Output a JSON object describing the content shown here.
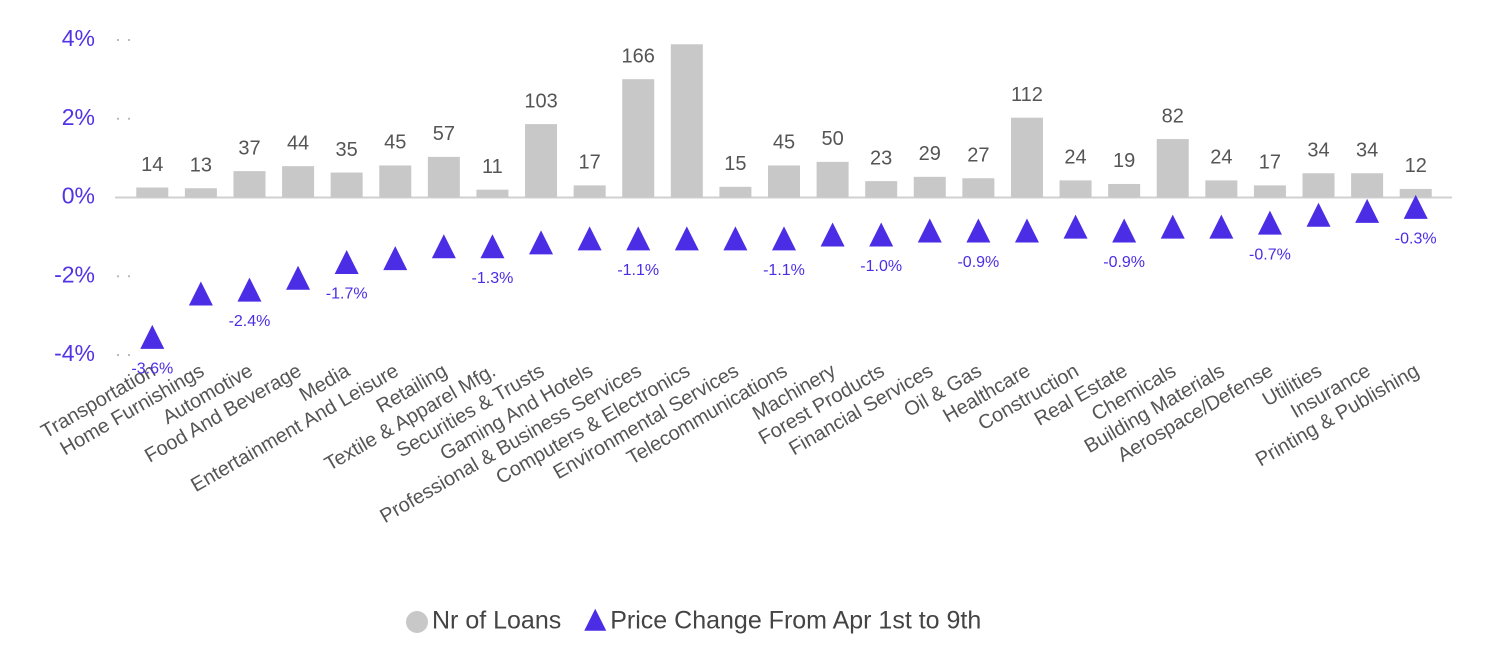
{
  "chart_data": {
    "type": "bar",
    "categories": [
      "Transportation",
      "Home Furnishings",
      "Automotive",
      "Food And Beverage",
      "Media",
      "Entertainment And Leisure",
      "Retailing",
      "Textile & Apparel Mfg.",
      "Securities & Trusts",
      "Gaming And Hotels",
      "Professional & Business Services",
      "Computers & Electronics",
      "Environmental Services",
      "Telecommunications",
      "Machinery",
      "Forest Products",
      "Financial Services",
      "Oil & Gas",
      "Healthcare",
      "Construction",
      "Real Estate",
      "Chemicals",
      "Building Materials",
      "Aerospace/Defense",
      "Utilities",
      "Insurance",
      "Printing & Publishing"
    ],
    "series": [
      {
        "name": "Nr of Loans",
        "type": "bar",
        "axis": "y2",
        "color": "#c8c8c8",
        "values": [
          14,
          13,
          37,
          44,
          35,
          45,
          57,
          11,
          103,
          17,
          166,
          215,
          15,
          45,
          50,
          23,
          29,
          27,
          112,
          24,
          19,
          82,
          24,
          17,
          34,
          34,
          12
        ],
        "value_labels": [
          "14",
          "13",
          "37",
          "44",
          "35",
          "45",
          "57",
          "11",
          "103",
          "17",
          "166",
          null,
          "15",
          "45",
          "50",
          "23",
          "29",
          "27",
          "112",
          "24",
          "19",
          "82",
          "24",
          "17",
          "34",
          "34",
          "12"
        ]
      },
      {
        "name": "Price Change From Apr 1st to 9th",
        "type": "scatter",
        "marker": "triangle",
        "color": "#4b2de6",
        "values": [
          -3.6,
          -2.5,
          -2.4,
          -2.1,
          -1.7,
          -1.6,
          -1.3,
          -1.3,
          -1.2,
          -1.1,
          -1.1,
          -1.1,
          -1.1,
          -1.1,
          -1.0,
          -1.0,
          -0.9,
          -0.9,
          -0.9,
          -0.8,
          -0.9,
          -0.8,
          -0.8,
          -0.7,
          -0.5,
          -0.4,
          -0.3
        ],
        "value_labels": [
          "-3.6%",
          null,
          "-2.4%",
          null,
          "-1.7%",
          null,
          null,
          "-1.3%",
          null,
          null,
          "-1.1%",
          null,
          null,
          "-1.1%",
          null,
          "-1.0%",
          null,
          "-0.9%",
          null,
          null,
          "-0.9%",
          null,
          null,
          "-0.7%",
          null,
          null,
          "-0.3%"
        ]
      }
    ],
    "ylim": [
      -4,
      4
    ],
    "yticks": [
      {
        "value": -4,
        "label": "-4%"
      },
      {
        "value": -2,
        "label": "-2%"
      },
      {
        "value": 0,
        "label": "0%"
      },
      {
        "value": 2,
        "label": "2%"
      },
      {
        "value": 4,
        "label": "4%"
      }
    ],
    "y2lim": [
      0,
      221
    ],
    "legend": "bottom"
  }
}
